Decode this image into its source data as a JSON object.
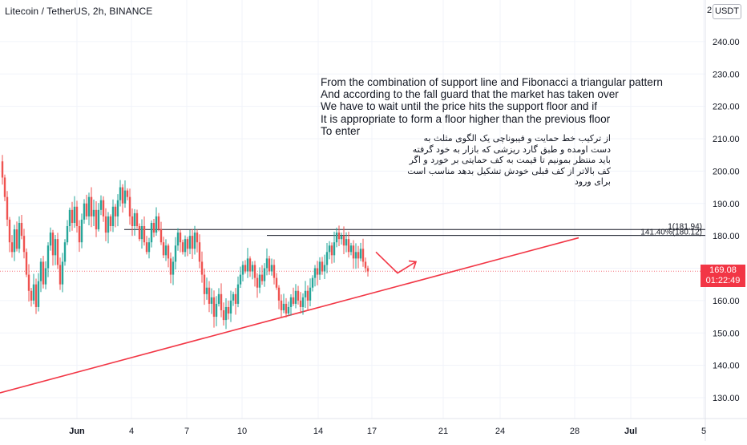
{
  "header": {
    "symbol_title": "Litecoin / TetherUS, 2h, BINANCE",
    "currency_button": "USDT",
    "edge_digit": "2"
  },
  "annotations": {
    "english_note": "From the combination of support line and Fibonacci a triangular pattern\nAnd according to the fall guard that the market has taken over\nWe have to wait until the price hits the support floor and if\nIt is appropriate to form a floor higher than the previous floor\nTo enter",
    "persian_note": "از ترکیب خط حمایت و فیبوناچی یک الگوی مثلث به\nدست اومده و طبق گارد ریزشی که بازار به خود گرفته\nباید منتظر بمونیم تا قیمت به کف حمایتی بر خورد و اگر\nکف بالاتر از کف قبلی خودش تشکیل بدهد مناسب است\nبرای ورود"
  },
  "price_tag": {
    "price": "169.08",
    "countdown": "01:22:49"
  },
  "colors": {
    "up": "#26a69a",
    "down": "#ef5350",
    "trendline": "#f23645",
    "fib_line": "#131722",
    "grid": "#f0f3fa",
    "axis_text": "#131722"
  },
  "chart_data": {
    "type": "candlestick",
    "symbol": "Litecoin / TetherUS",
    "interval": "2h",
    "exchange": "BINANCE",
    "ylim": [
      122,
      252
    ],
    "y_ticks": [
      "130.00",
      "140.00",
      "150.00",
      "160.00",
      "170.00",
      "180.00",
      "190.00",
      "200.00",
      "210.00",
      "220.00",
      "230.00",
      "240.00"
    ],
    "x_ticks": [
      "Jun",
      "4",
      "7",
      "10",
      "14",
      "17",
      "21",
      "24",
      "28",
      "Jul",
      "5"
    ],
    "last_price": 169.08,
    "candle_path_bullish_green_bearish_red": [
      [
        0,
        203
      ],
      [
        3,
        198
      ],
      [
        6,
        192
      ],
      [
        9,
        185
      ],
      [
        12,
        178
      ],
      [
        15,
        175
      ],
      [
        18,
        182
      ],
      [
        21,
        176
      ],
      [
        24,
        184
      ],
      [
        27,
        180
      ],
      [
        30,
        175
      ],
      [
        33,
        168
      ],
      [
        36,
        163
      ],
      [
        39,
        160
      ],
      [
        42,
        165
      ],
      [
        45,
        158
      ],
      [
        48,
        166
      ],
      [
        51,
        172
      ],
      [
        54,
        165
      ],
      [
        57,
        170
      ],
      [
        60,
        177
      ],
      [
        63,
        181
      ],
      [
        66,
        174
      ],
      [
        69,
        179
      ],
      [
        72,
        171
      ],
      [
        75,
        165
      ],
      [
        78,
        172
      ],
      [
        81,
        178
      ],
      [
        84,
        183
      ],
      [
        87,
        188
      ],
      [
        90,
        184
      ],
      [
        93,
        189
      ],
      [
        96,
        183
      ],
      [
        99,
        178
      ],
      [
        102,
        185
      ],
      [
        105,
        190
      ],
      [
        108,
        186
      ],
      [
        111,
        192
      ],
      [
        114,
        186
      ],
      [
        117,
        188
      ],
      [
        120,
        182
      ],
      [
        123,
        188
      ],
      [
        126,
        191
      ],
      [
        129,
        186
      ],
      [
        132,
        181
      ],
      [
        135,
        186
      ],
      [
        138,
        183
      ],
      [
        141,
        189
      ],
      [
        144,
        186
      ],
      [
        147,
        191
      ],
      [
        150,
        195
      ],
      [
        153,
        190
      ],
      [
        156,
        194
      ],
      [
        159,
        192
      ],
      [
        162,
        186
      ],
      [
        165,
        183
      ],
      [
        168,
        187
      ],
      [
        171,
        183
      ],
      [
        174,
        179
      ],
      [
        177,
        183
      ],
      [
        180,
        178
      ],
      [
        183,
        175
      ],
      [
        186,
        178
      ],
      [
        189,
        184
      ],
      [
        192,
        181
      ],
      [
        195,
        186
      ],
      [
        198,
        182
      ],
      [
        201,
        178
      ],
      [
        204,
        174
      ],
      [
        207,
        177
      ],
      [
        210,
        173
      ],
      [
        213,
        168
      ],
      [
        216,
        172
      ],
      [
        219,
        177
      ],
      [
        222,
        181
      ],
      [
        225,
        178
      ],
      [
        228,
        175
      ],
      [
        231,
        179
      ],
      [
        234,
        176
      ],
      [
        237,
        180
      ],
      [
        240,
        176
      ],
      [
        243,
        181
      ],
      [
        246,
        178
      ],
      [
        249,
        172
      ],
      [
        252,
        168
      ],
      [
        255,
        162
      ],
      [
        258,
        164
      ],
      [
        261,
        159
      ],
      [
        264,
        161
      ],
      [
        267,
        155
      ],
      [
        270,
        159
      ],
      [
        273,
        162
      ],
      [
        276,
        157
      ],
      [
        279,
        154
      ],
      [
        282,
        158
      ],
      [
        285,
        156
      ],
      [
        288,
        160
      ],
      [
        291,
        162
      ],
      [
        294,
        159
      ],
      [
        297,
        165
      ],
      [
        300,
        168
      ],
      [
        303,
        171
      ],
      [
        306,
        169
      ],
      [
        309,
        173
      ],
      [
        312,
        169
      ],
      [
        315,
        171
      ],
      [
        318,
        167
      ],
      [
        321,
        164
      ],
      [
        324,
        168
      ],
      [
        327,
        166
      ],
      [
        330,
        170
      ],
      [
        333,
        173
      ],
      [
        336,
        169
      ],
      [
        339,
        171
      ],
      [
        342,
        167
      ],
      [
        345,
        164
      ],
      [
        348,
        160
      ],
      [
        351,
        157
      ],
      [
        354,
        159
      ],
      [
        357,
        156
      ],
      [
        360,
        158
      ],
      [
        363,
        161
      ],
      [
        366,
        159
      ],
      [
        369,
        163
      ],
      [
        372,
        160
      ],
      [
        375,
        158
      ],
      [
        378,
        161
      ],
      [
        381,
        163
      ],
      [
        384,
        160
      ],
      [
        387,
        164
      ],
      [
        390,
        167
      ],
      [
        393,
        170
      ],
      [
        396,
        168
      ],
      [
        399,
        172
      ],
      [
        402,
        169
      ],
      [
        405,
        171
      ],
      [
        408,
        175
      ],
      [
        411,
        177
      ],
      [
        414,
        174
      ],
      [
        417,
        178
      ],
      [
        420,
        181
      ],
      [
        423,
        179
      ],
      [
        426,
        180
      ],
      [
        429,
        177
      ],
      [
        432,
        179
      ],
      [
        435,
        175
      ],
      [
        438,
        177
      ],
      [
        441,
        173
      ],
      [
        444,
        175
      ],
      [
        447,
        173
      ],
      [
        450,
        176
      ],
      [
        453,
        172
      ],
      [
        456,
        170
      ],
      [
        459,
        169
      ]
    ],
    "support_trendline": [
      [
        0,
        131.5
      ],
      [
        722,
        179.4
      ]
    ],
    "projected_path": [
      [
        469,
        175
      ],
      [
        496,
        168.5
      ],
      [
        519,
        172
      ]
    ],
    "fib_levels": [
      {
        "label": "1(181.94)",
        "value": 181.94,
        "x_start": 155
      },
      {
        "label": "141.40%(180.12)",
        "value": 180.12,
        "x_start": 333
      }
    ],
    "grid": true
  }
}
